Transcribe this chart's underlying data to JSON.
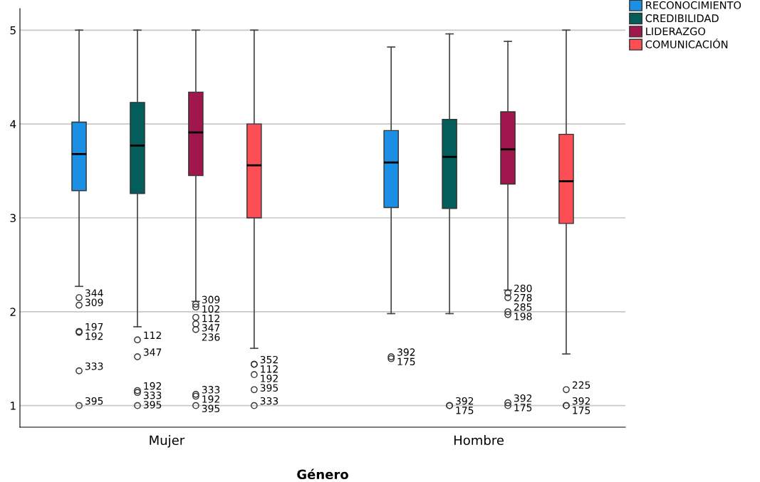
{
  "chart_data": {
    "type": "box",
    "xlabel": "Género",
    "categories": [
      "Mujer",
      "Hombre"
    ],
    "ylim": [
      0.77,
      5.23
    ],
    "yticks": [
      1,
      2,
      3,
      4,
      5
    ],
    "grid": "y",
    "legend": "top right",
    "marker": "circle",
    "series": [
      {
        "name": "RECONOCIMIENTO",
        "color": "#1a8fe3",
        "boxes": [
          {
            "low": 2.27,
            "q1": 3.29,
            "median": 3.68,
            "q3": 4.02,
            "high": 5,
            "outliers": [
              2.15,
              2.07,
              1.79,
              1.78,
              1.37,
              1.0
            ]
          },
          {
            "low": 1.98,
            "q1": 3.11,
            "median": 3.59,
            "q3": 3.93,
            "high": 4.82,
            "outliers": [
              1.52,
              1.5
            ]
          }
        ]
      },
      {
        "name": "CREDIBILIDAD",
        "color": "#035e5b",
        "boxes": [
          {
            "low": 1.84,
            "q1": 3.26,
            "median": 3.77,
            "q3": 4.23,
            "high": 5,
            "outliers": [
              1.7,
              1.52,
              1.16,
              1.14,
              1.0
            ]
          },
          {
            "low": 1.98,
            "q1": 3.1,
            "median": 3.65,
            "q3": 4.05,
            "high": 4.96,
            "outliers": [
              1.0,
              1.0
            ]
          }
        ]
      },
      {
        "name": "LIDERAZGO",
        "color": "#a0174e",
        "boxes": [
          {
            "low": 2.11,
            "q1": 3.45,
            "median": 3.91,
            "q3": 4.34,
            "high": 5,
            "outliers": [
              2.08,
              2.05,
              1.94,
              1.87,
              1.81,
              1.12,
              1.1,
              1.0
            ]
          },
          {
            "low": 2.23,
            "q1": 3.36,
            "median": 3.73,
            "q3": 4.13,
            "high": 4.88,
            "outliers": [
              2.2,
              2.15,
              2.0,
              1.97,
              1.03,
              1.0
            ]
          }
        ]
      },
      {
        "name": "COMUNICACIÓN",
        "color": "#fc4e55",
        "boxes": [
          {
            "low": 1.61,
            "q1": 3.0,
            "median": 3.56,
            "q3": 4.0,
            "high": 5,
            "outliers": [
              1.44,
              1.44,
              1.33,
              1.17,
              1.0
            ]
          },
          {
            "low": 1.55,
            "q1": 2.94,
            "median": 3.39,
            "q3": 3.89,
            "high": 5,
            "outliers": [
              1.17,
              1.0,
              1.0
            ]
          }
        ]
      }
    ],
    "annotations": [
      "344",
      "309",
      "197",
      "192",
      "333",
      "395",
      "112",
      "347",
      "192",
      "333",
      "395",
      "309",
      "102",
      "112",
      "347",
      "236",
      "333",
      "192",
      "395",
      "352",
      "112",
      "192",
      "395",
      "333",
      "392",
      "175",
      "392",
      "175",
      "280",
      "278",
      "285",
      "198",
      "392",
      "175",
      "225",
      "392",
      "175"
    ]
  }
}
